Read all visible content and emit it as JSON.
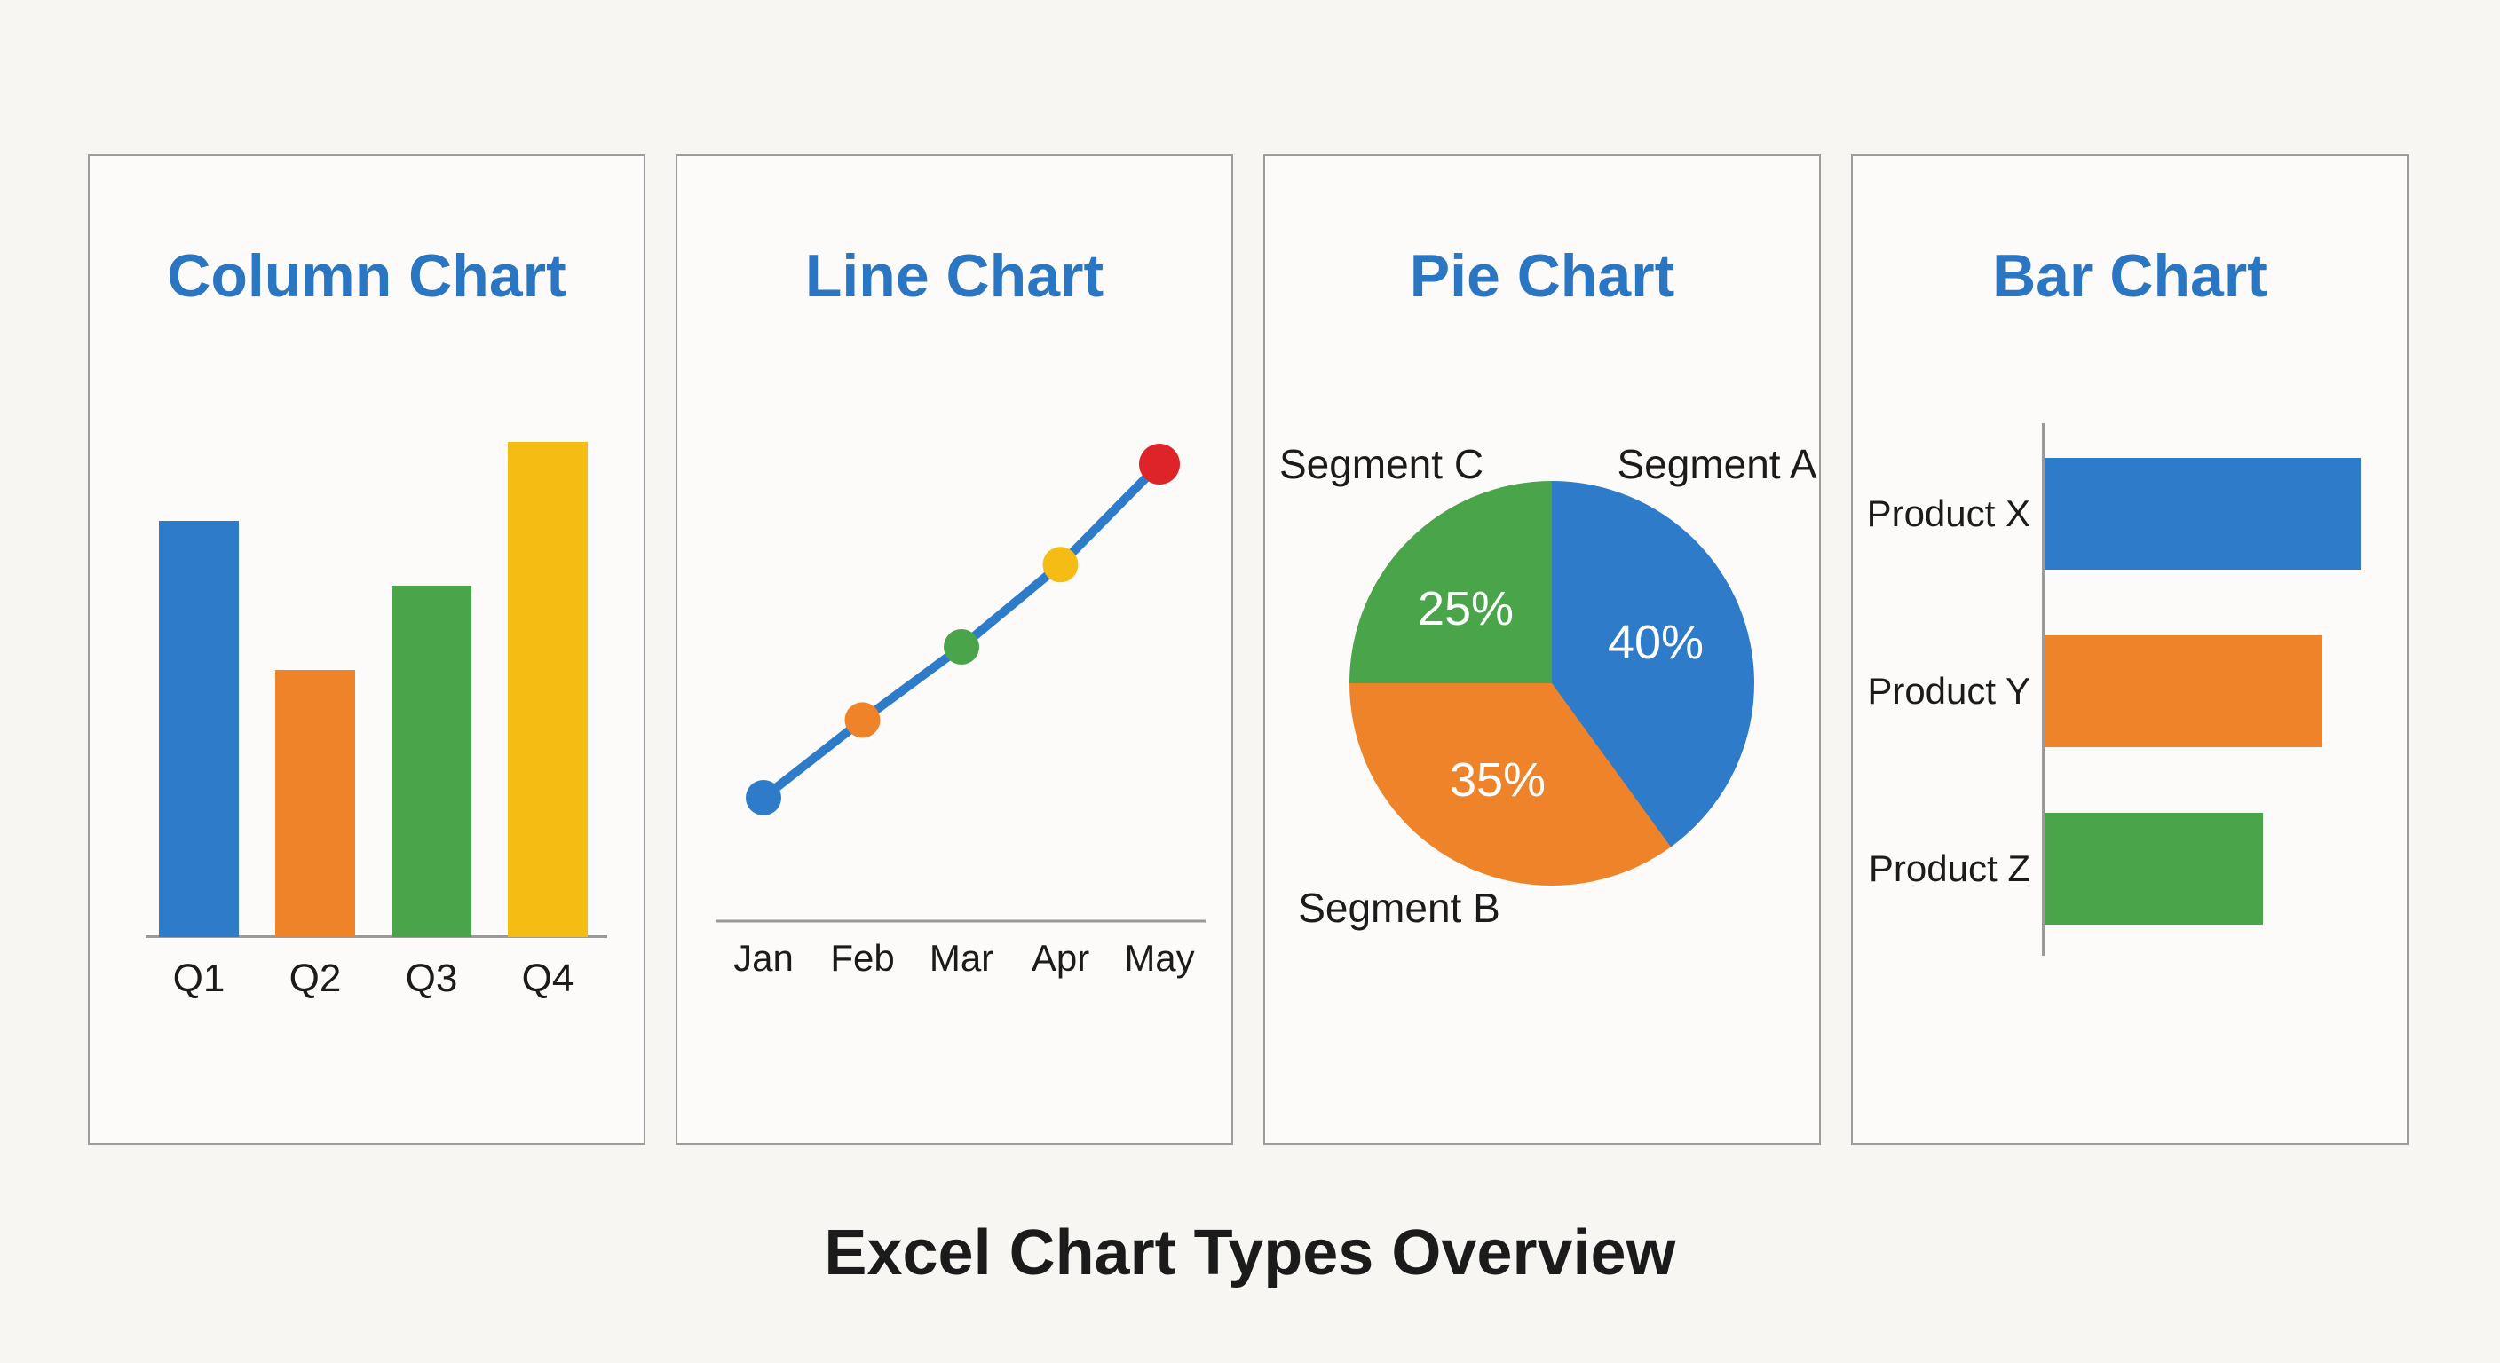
{
  "page": {
    "footer_title": "Excel Chart Types Overview",
    "background": "#f7f6f3",
    "panel_background": "#fcfbf9",
    "panel_border_color": "#9c9c9c",
    "axis_color": "#9a9a9a",
    "panel_title_color": "#2b76c2",
    "text_color": "#1b1b1b"
  },
  "palette": {
    "blue": "#2e7cc9",
    "orange": "#ef8329",
    "green": "#4aa44a",
    "yellow": "#f5bd14",
    "red": "#de2428"
  },
  "chart_data": [
    {
      "type": "bar",
      "orientation": "vertical",
      "title": "Column Chart",
      "categories": [
        "Q1",
        "Q2",
        "Q3",
        "Q4"
      ],
      "values": [
        84,
        54,
        71,
        100
      ],
      "bar_colors": [
        "#2e7cc9",
        "#ef8329",
        "#4aa44a",
        "#f5bd14"
      ],
      "ylim": [
        0,
        100
      ],
      "grid": false,
      "legend": "none"
    },
    {
      "type": "line",
      "title": "Line Chart",
      "x": [
        "Jan",
        "Feb",
        "Mar",
        "Apr",
        "May"
      ],
      "values": [
        27,
        44,
        60,
        78,
        100
      ],
      "line_color": "#2e7cc9",
      "marker_colors": [
        "#2e7cc9",
        "#ef8329",
        "#4aa44a",
        "#f5bd14",
        "#de2428"
      ],
      "ylim": [
        0,
        110
      ],
      "grid": false,
      "legend": "none"
    },
    {
      "type": "pie",
      "title": "Pie Chart",
      "labels": [
        "Segment A",
        "Segment B",
        "Segment C"
      ],
      "values": [
        40,
        35,
        25
      ],
      "data_labels": [
        "40%",
        "35%",
        "25%"
      ],
      "slice_colors": [
        "#2e7cc9",
        "#ef8329",
        "#4aa44a"
      ],
      "start_angle_deg": 0,
      "direction": "clockwise",
      "legend": "none"
    },
    {
      "type": "bar",
      "orientation": "horizontal",
      "title": "Bar Chart",
      "categories": [
        "Product X",
        "Product Y",
        "Product Z"
      ],
      "values": [
        100,
        88,
        69
      ],
      "bar_colors": [
        "#2e7cc9",
        "#ef8329",
        "#4aa44a"
      ],
      "xlim": [
        0,
        100
      ],
      "grid": false,
      "legend": "none"
    }
  ]
}
